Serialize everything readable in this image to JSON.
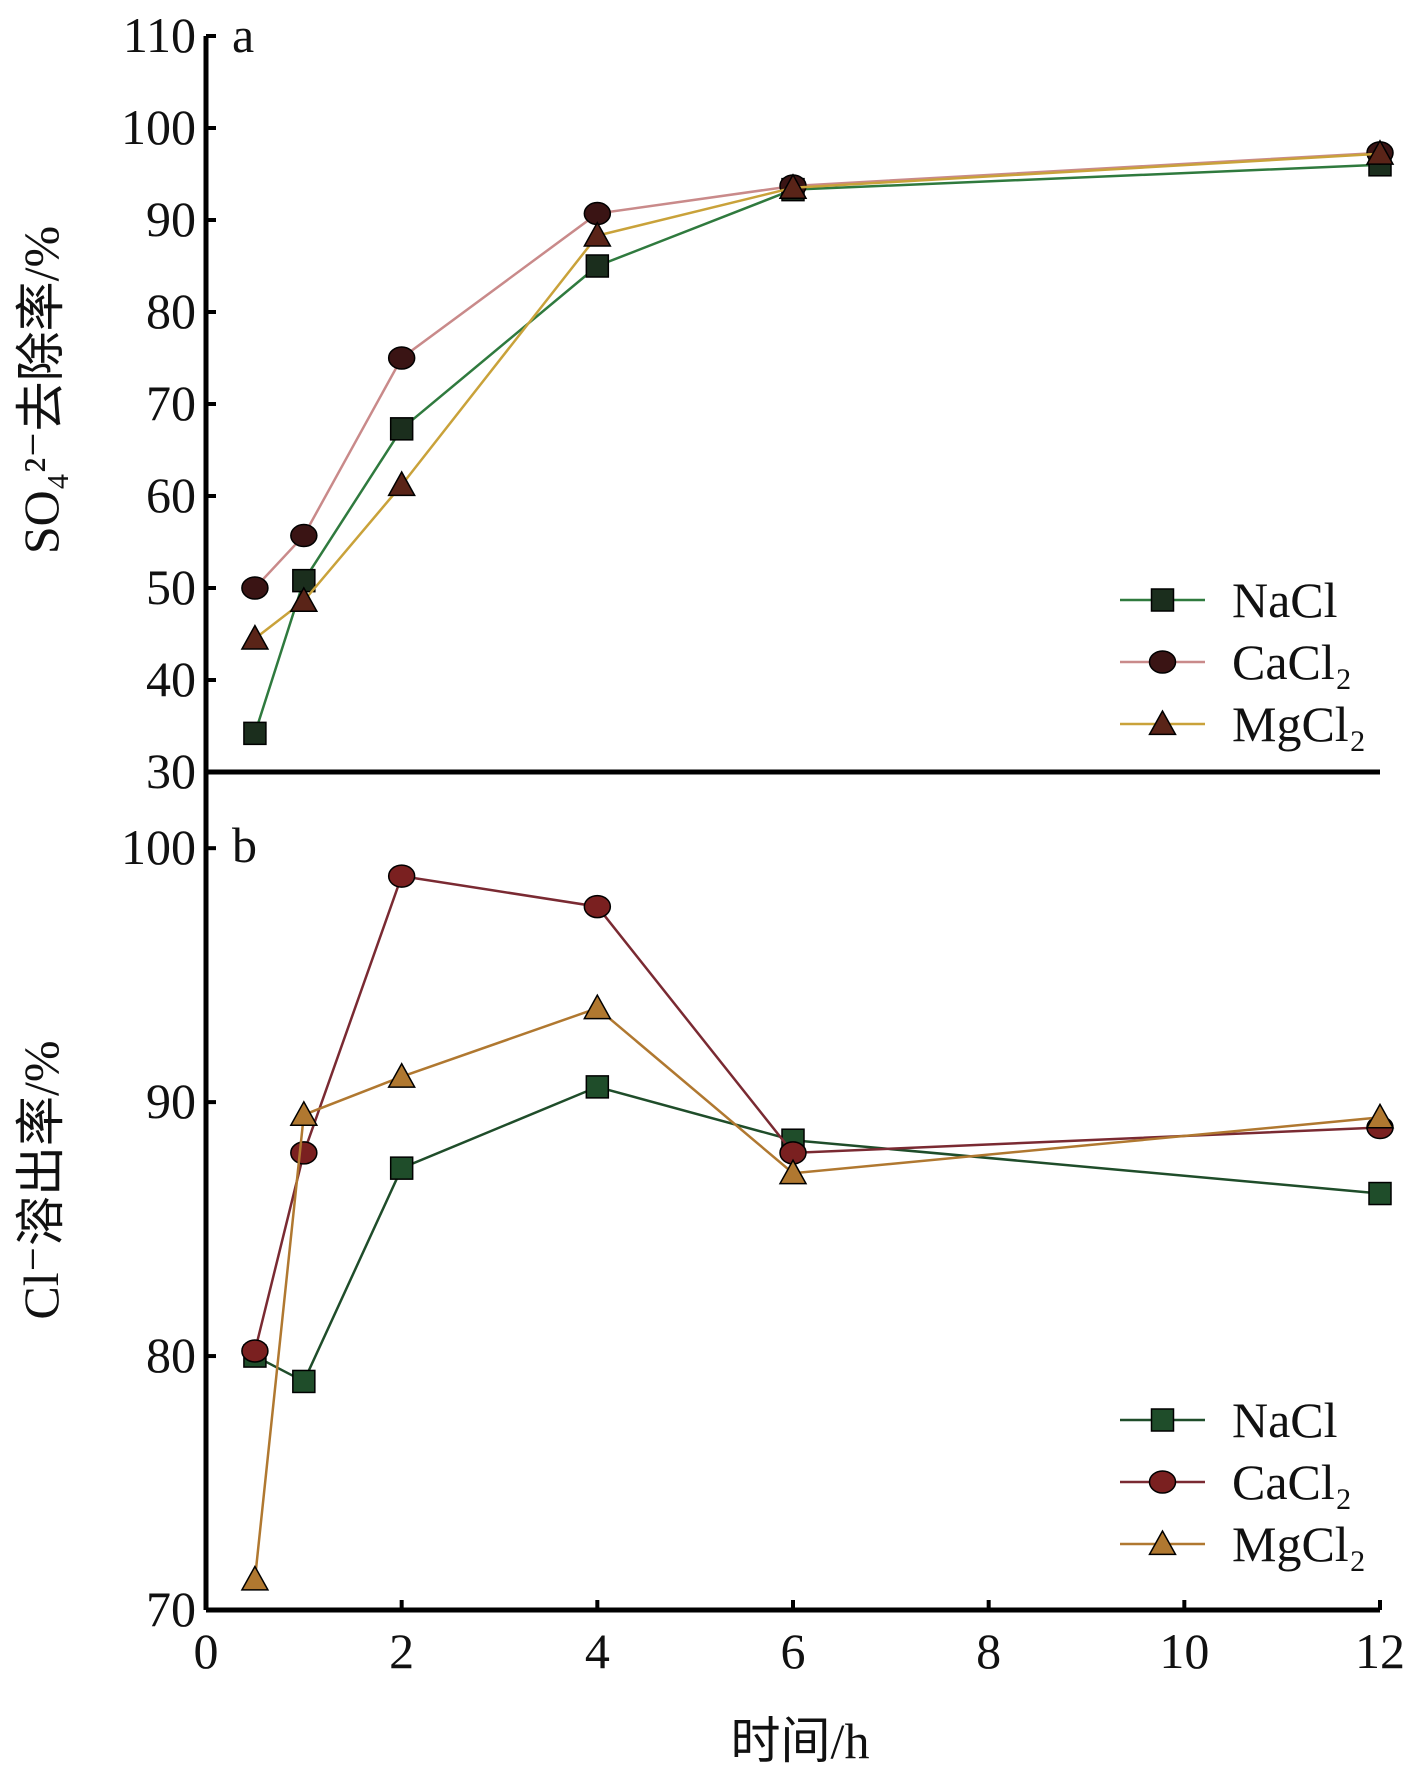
{
  "chart_data": [
    {
      "panel": "a",
      "type": "line",
      "ylabel": "SO₄²⁻去除率/%",
      "ylim": [
        30,
        110
      ],
      "yticks": [
        30,
        40,
        50,
        60,
        70,
        80,
        90,
        100,
        110
      ],
      "legend_position": "bottom-right",
      "series": [
        {
          "name": "NaCl",
          "marker": "square",
          "line_color": "#2f7a3e",
          "marker_color": "#1b2e1d",
          "points": [
            [
              0.5,
              34.2
            ],
            [
              1,
              50.8
            ],
            [
              2,
              67.3
            ],
            [
              4,
              85.0
            ],
            [
              6,
              93.3
            ],
            [
              12,
              96.0
            ]
          ]
        },
        {
          "name": "CaCl₂",
          "marker": "circle",
          "line_color": "#c98a8a",
          "marker_color": "#3a1414",
          "points": [
            [
              0.5,
              50.0
            ],
            [
              1,
              55.7
            ],
            [
              2,
              75.0
            ],
            [
              4,
              90.7
            ],
            [
              6,
              93.7
            ],
            [
              12,
              97.3
            ]
          ]
        },
        {
          "name": "MgCl₂",
          "marker": "triangle",
          "line_color": "#c9a23a",
          "marker_color": "#5a2418",
          "points": [
            [
              0.5,
              44.5
            ],
            [
              1,
              48.6
            ],
            [
              2,
              61.2
            ],
            [
              4,
              88.3
            ],
            [
              6,
              93.5
            ],
            [
              12,
              97.2
            ]
          ]
        }
      ]
    },
    {
      "panel": "b",
      "type": "line",
      "ylabel": "Cl⁻溶出率/%",
      "ylim": [
        70,
        103
      ],
      "yticks": [
        70,
        80,
        90,
        100
      ],
      "legend_position": "bottom-right",
      "series": [
        {
          "name": "NaCl",
          "marker": "square",
          "line_color": "#1f4d2a",
          "marker_color": "#1f4d2a",
          "points": [
            [
              0.5,
              80.0
            ],
            [
              1,
              79.0
            ],
            [
              2,
              87.4
            ],
            [
              4,
              90.6
            ],
            [
              6,
              88.5
            ],
            [
              12,
              86.4
            ]
          ]
        },
        {
          "name": "CaCl₂",
          "marker": "circle",
          "line_color": "#7a2a32",
          "marker_color": "#7a2020",
          "points": [
            [
              0.5,
              80.2
            ],
            [
              1,
              88.0
            ],
            [
              2,
              98.9
            ],
            [
              4,
              97.7
            ],
            [
              6,
              88.0
            ],
            [
              12,
              89.0
            ]
          ]
        },
        {
          "name": "MgCl₂",
          "marker": "triangle",
          "line_color": "#b07830",
          "marker_color": "#b07830",
          "points": [
            [
              0.5,
              71.2
            ],
            [
              1,
              89.5
            ],
            [
              2,
              91.0
            ],
            [
              4,
              93.7
            ],
            [
              6,
              87.2
            ],
            [
              12,
              89.4
            ]
          ]
        }
      ]
    }
  ],
  "x_axis": {
    "label": "时间/h",
    "tick_values": [
      0,
      2,
      4,
      6,
      8,
      10,
      12
    ],
    "tick_labels": [
      "0",
      "2",
      "4",
      "6",
      "8",
      "10",
      "12"
    ],
    "position_map_note": "x positions: 0→0,0.5→0.5,1→1,2→2,4→4,6→6,12→12 plotted at label slots"
  }
}
